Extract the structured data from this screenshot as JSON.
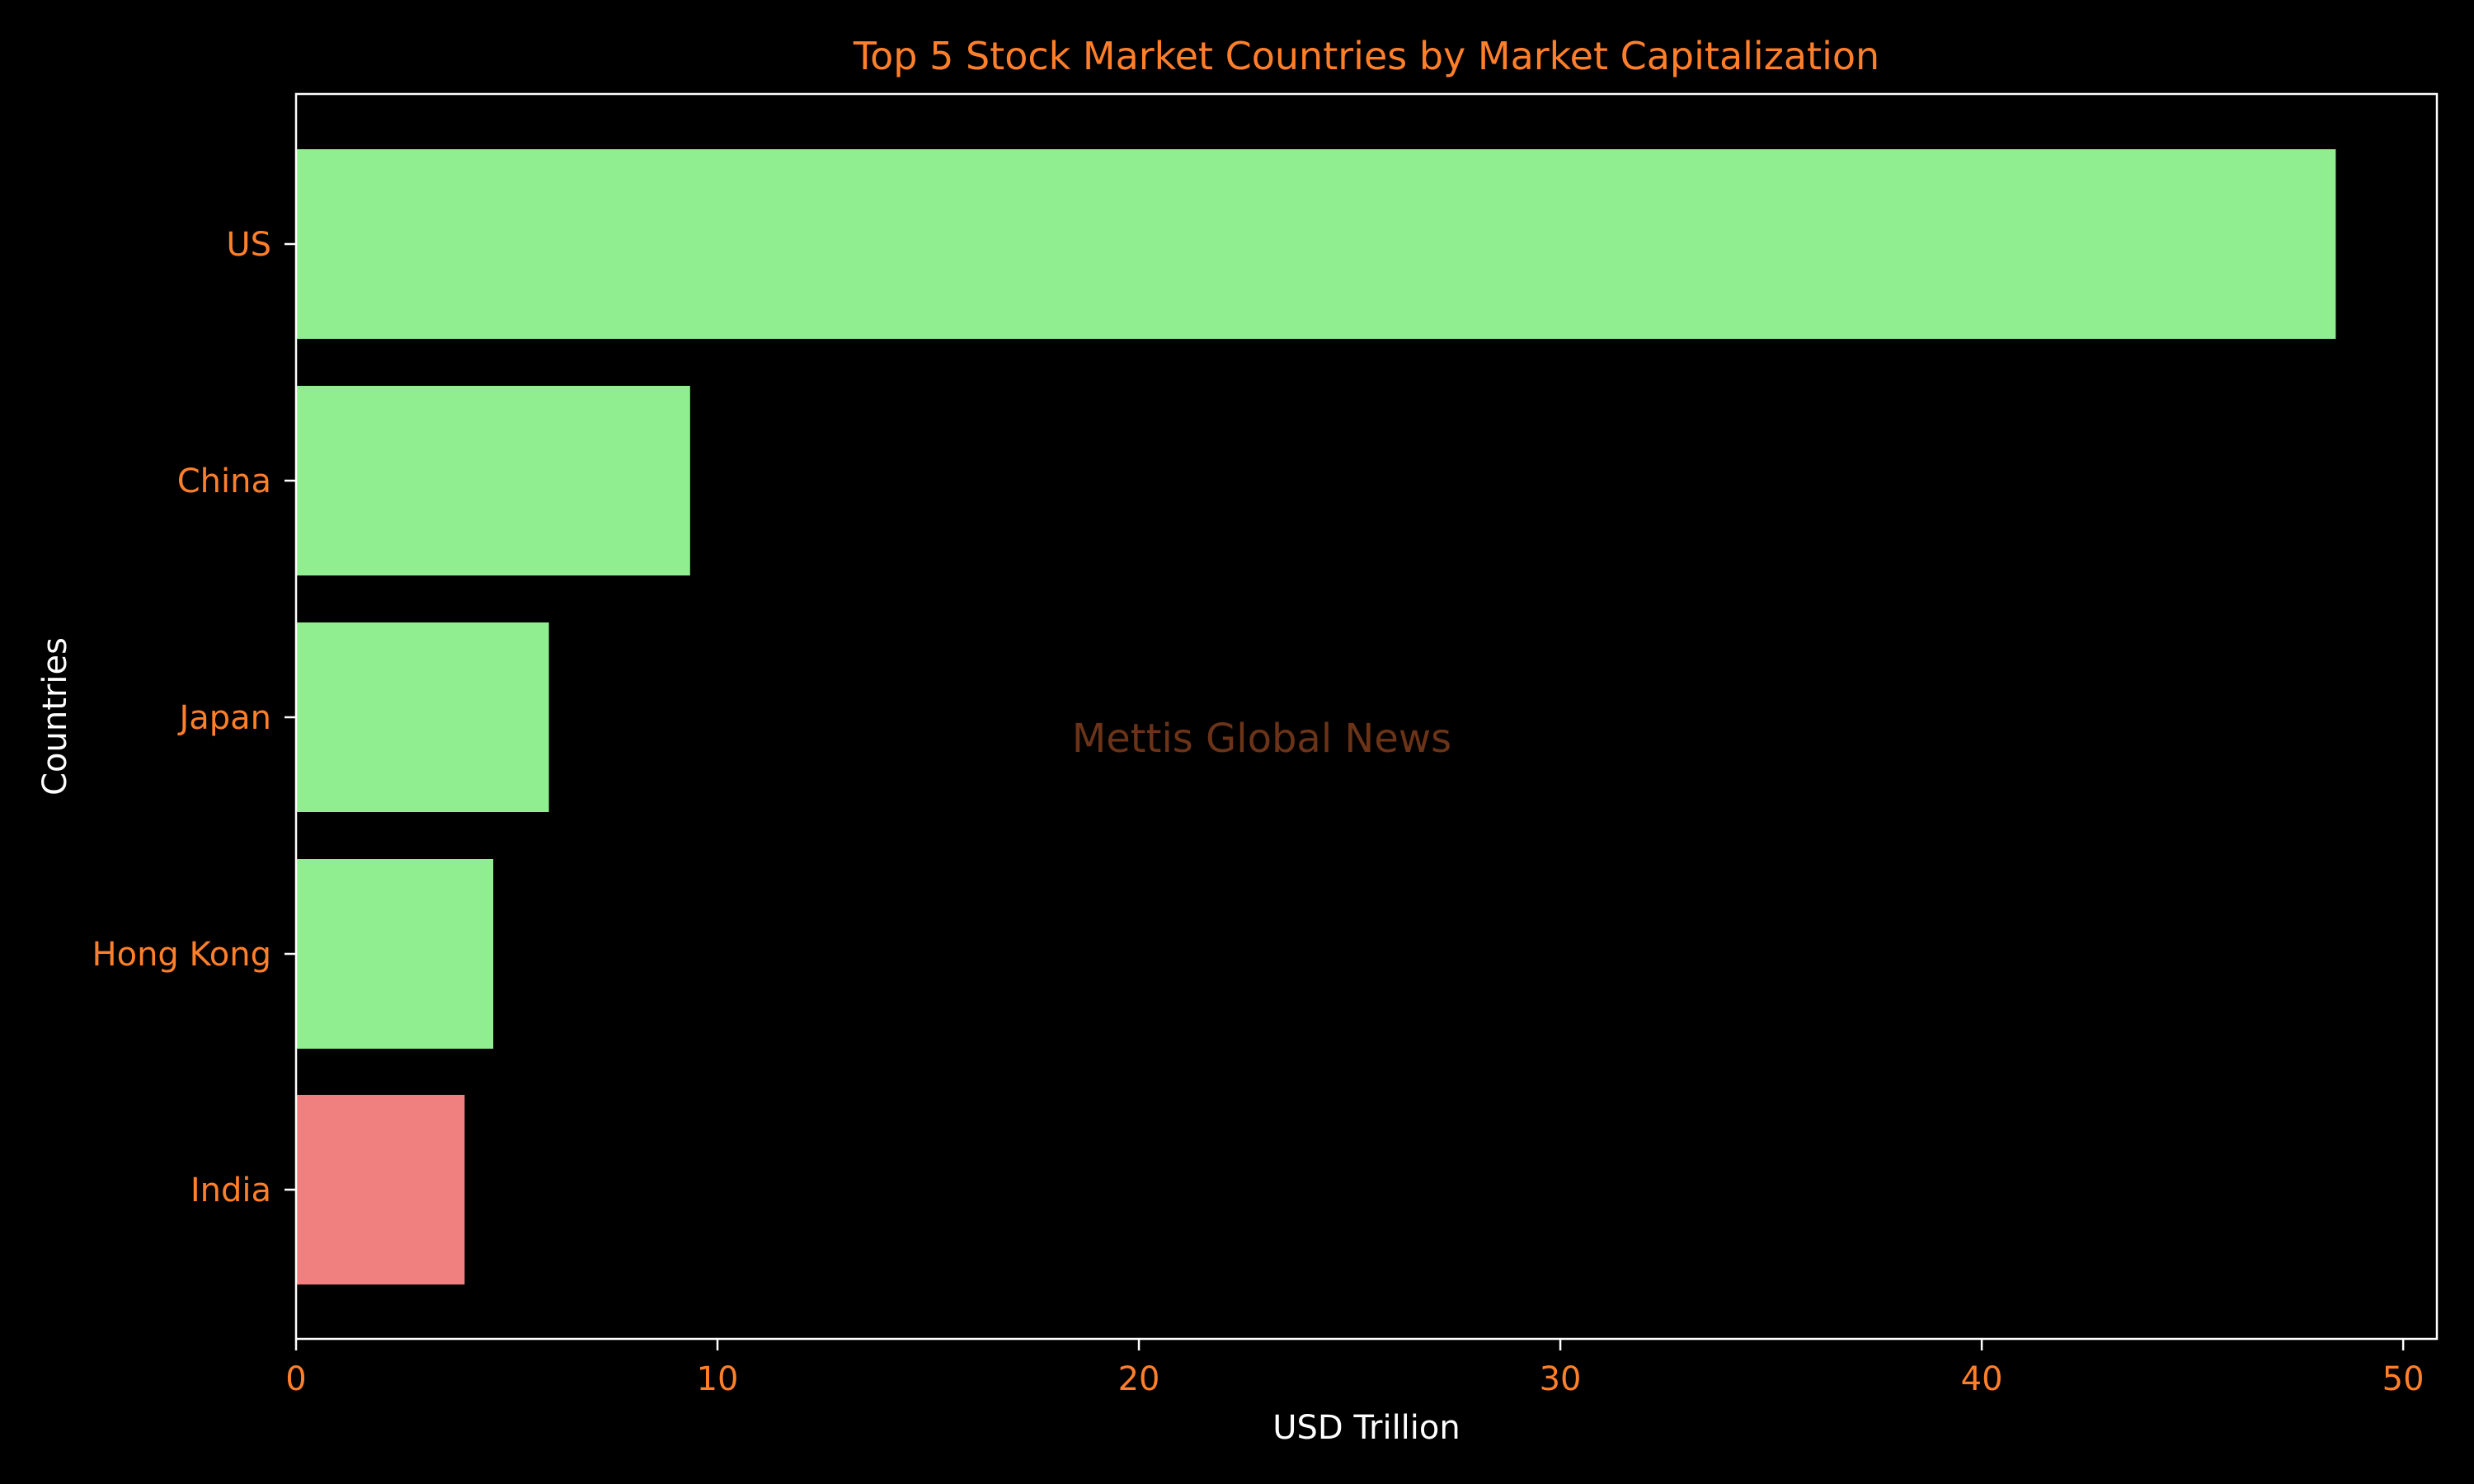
{
  "colors": {
    "background": "#000000",
    "accent_text": "#ff7f2a",
    "axis_text": "#ffffff",
    "spine": "#ffffff",
    "bar_default": "#90ee90",
    "bar_highlight": "#f08080",
    "watermark": "#6b3317"
  },
  "watermark": "Mettis Global News",
  "chart_data": {
    "type": "bar",
    "orientation": "horizontal",
    "title": "Top 5 Stock Market Countries by Market Capitalization",
    "xlabel": "USD Trillion",
    "ylabel": "Countries",
    "categories": [
      "US",
      "China",
      "Japan",
      "Hong Kong",
      "India"
    ],
    "values": [
      48.4,
      9.35,
      6.0,
      4.68,
      4.0
    ],
    "bar_colors": [
      "#90ee90",
      "#90ee90",
      "#90ee90",
      "#90ee90",
      "#f08080"
    ],
    "xlim": [
      0,
      50.8
    ],
    "xticks": [
      0,
      10,
      20,
      30,
      40,
      50
    ],
    "grid": false,
    "legend": "none"
  }
}
